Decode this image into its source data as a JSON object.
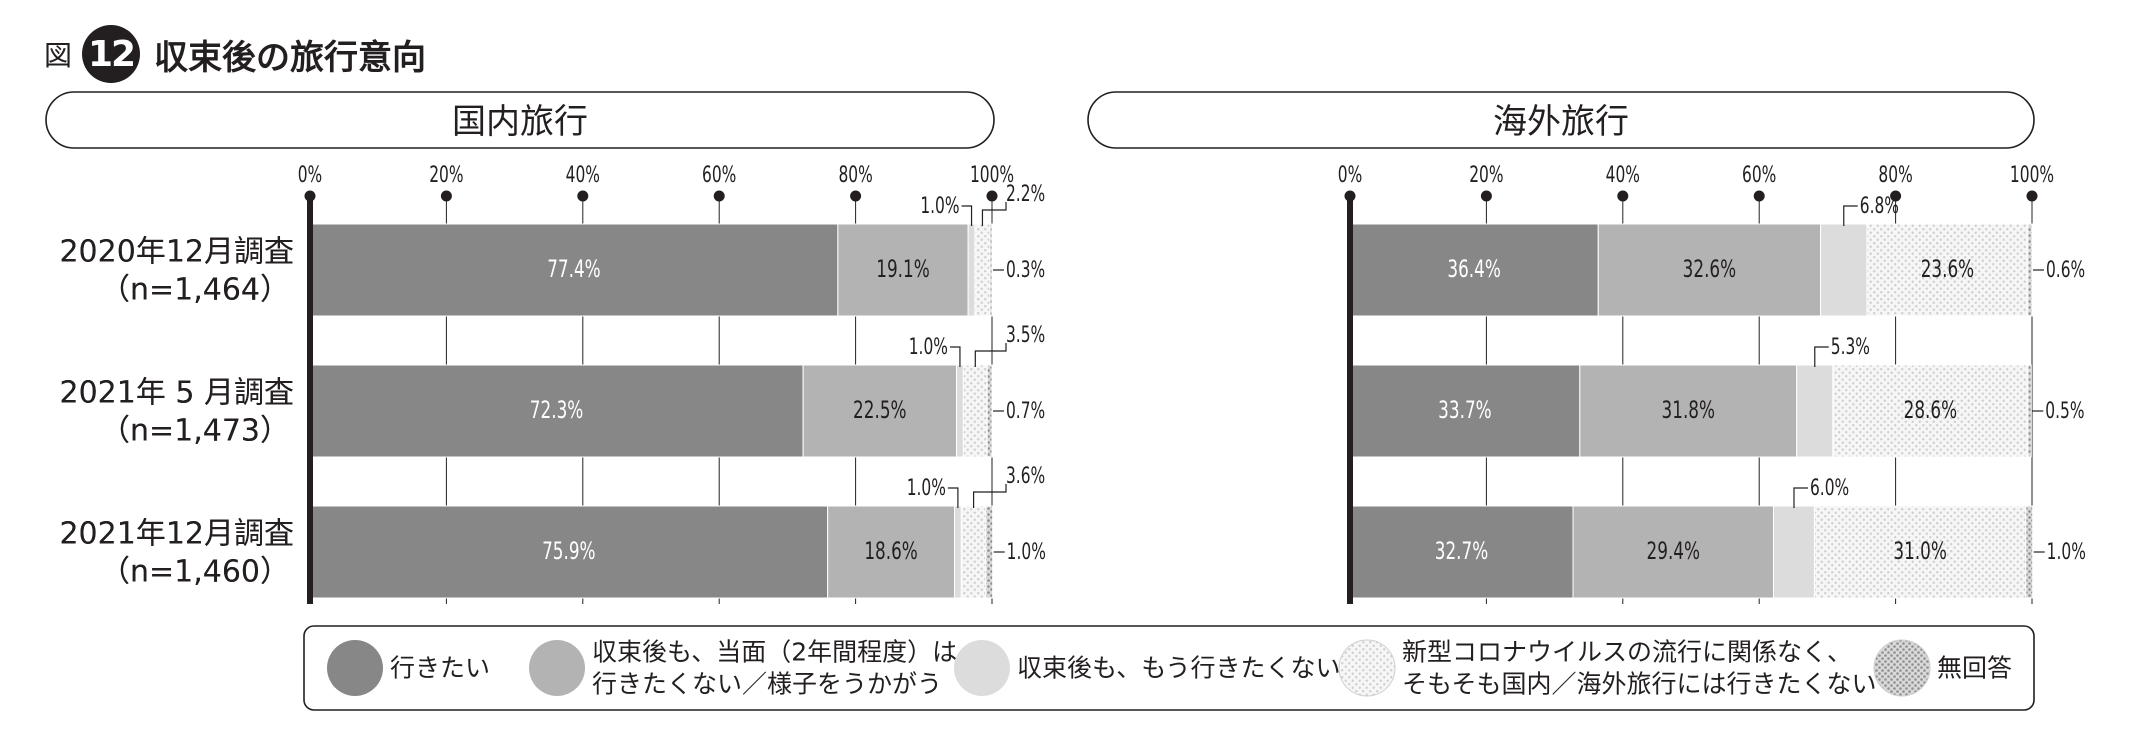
{
  "figure": {
    "label": "図",
    "number": "12",
    "title": "収束後の旅行意向"
  },
  "chart_data": [
    {
      "type": "bar",
      "stacked": true,
      "orientation": "horizontal",
      "title": "国内旅行",
      "xlim": [
        0,
        100
      ],
      "xticks": [
        "0%",
        "20%",
        "40%",
        "60%",
        "80%",
        "100%"
      ],
      "categories": [
        {
          "line1": "2020年12月調査",
          "line2": "（n=1,464）"
        },
        {
          "line1": "2021年 5 月調査",
          "line2": "（n=1,473）"
        },
        {
          "line1": "2021年12月調査",
          "line2": "（n=1,460）"
        }
      ],
      "series": [
        {
          "name": "行きたい",
          "values": [
            77.4,
            72.3,
            75.9
          ],
          "labels": [
            "77.4%",
            "72.3%",
            "75.9%"
          ]
        },
        {
          "name": "収束後も、当面（2年間程度）は行きたくない／様子をうかがう",
          "values": [
            19.1,
            22.5,
            18.6
          ],
          "labels": [
            "19.1%",
            "22.5%",
            "18.6%"
          ]
        },
        {
          "name": "収束後も、もう行きたくない",
          "values": [
            1.0,
            1.0,
            1.0
          ],
          "labels": [
            "1.0%",
            "1.0%",
            "1.0%"
          ]
        },
        {
          "name": "新型コロナウイルスの流行に関係なく、そもそも国内／海外旅行には行きたくない",
          "values": [
            2.2,
            3.5,
            3.6
          ],
          "labels": [
            "2.2%",
            "3.5%",
            "3.6%"
          ]
        },
        {
          "name": "無回答",
          "values": [
            0.3,
            0.7,
            1.0
          ],
          "labels": [
            "0.3%",
            "0.7%",
            "1.0%"
          ]
        }
      ]
    },
    {
      "type": "bar",
      "stacked": true,
      "orientation": "horizontal",
      "title": "海外旅行",
      "xlim": [
        0,
        100
      ],
      "xticks": [
        "0%",
        "20%",
        "40%",
        "60%",
        "80%",
        "100%"
      ],
      "categories": [
        {
          "line1": "2020年12月調査",
          "line2": "（n=1,464）"
        },
        {
          "line1": "2021年 5 月調査",
          "line2": "（n=1,473）"
        },
        {
          "line1": "2021年12月調査",
          "line2": "（n=1,460）"
        }
      ],
      "series": [
        {
          "name": "行きたい",
          "values": [
            36.4,
            33.7,
            32.7
          ],
          "labels": [
            "36.4%",
            "33.7%",
            "32.7%"
          ]
        },
        {
          "name": "収束後も、当面（2年間程度）は行きたくない／様子をうかがう",
          "values": [
            32.6,
            31.8,
            29.4
          ],
          "labels": [
            "32.6%",
            "31.8%",
            "29.4%"
          ]
        },
        {
          "name": "収束後も、もう行きたくない",
          "values": [
            6.8,
            5.3,
            6.0
          ],
          "labels": [
            "6.8%",
            "5.3%",
            "6.0%"
          ]
        },
        {
          "name": "新型コロナウイルスの流行に関係なく、そもそも国内／海外旅行には行きたくない",
          "values": [
            23.6,
            28.6,
            31.0
          ],
          "labels": [
            "23.6%",
            "28.6%",
            "31.0%"
          ]
        },
        {
          "name": "無回答",
          "values": [
            0.6,
            0.5,
            1.0
          ],
          "labels": [
            "0.6%",
            "0.5%",
            "1.0%"
          ]
        }
      ]
    }
  ],
  "legend": {
    "placement": "bottom",
    "items": [
      {
        "lines": [
          "行きたい"
        ]
      },
      {
        "lines": [
          "収束後も、当面（2年間程度）は",
          "行きたくない／様子をうかがう"
        ]
      },
      {
        "lines": [
          "収束後も、もう行きたくない"
        ]
      },
      {
        "lines": [
          "新型コロナウイルスの流行に関係なく、",
          "そもそも国内／海外旅行には行きたくない"
        ]
      },
      {
        "lines": [
          "無回答"
        ]
      }
    ]
  },
  "colors": {
    "series": [
      "#878787",
      "#b3b3b3",
      "#dcdcdc",
      "#f0f0f0",
      "#c6c6c6"
    ],
    "axis": "#231f20",
    "grid": "#231f20"
  }
}
